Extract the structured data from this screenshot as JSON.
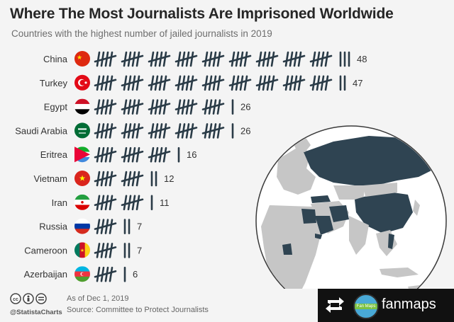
{
  "title": "Where The Most Journalists Are Imprisoned Worldwide",
  "subtitle": "Countries with the highest number of jailed journalists in 2019",
  "chart_data": {
    "type": "bar",
    "encoding": "tally marks (groups of five)",
    "categories": [
      "China",
      "Turkey",
      "Egypt",
      "Saudi Arabia",
      "Eritrea",
      "Vietnam",
      "Iran",
      "Russia",
      "Cameroon",
      "Azerbaijan"
    ],
    "values": [
      48,
      47,
      26,
      26,
      16,
      12,
      11,
      7,
      7,
      6
    ],
    "value_labels": [
      "48",
      "47",
      "26",
      "26",
      "16",
      "12",
      "11",
      "7",
      "7",
      "6"
    ],
    "title": "Where The Most Journalists Are Imprisoned Worldwide",
    "subtitle": "Countries with the highest number of jailed journalists in 2019",
    "xlabel": "",
    "ylabel": ""
  },
  "colors": {
    "tally": "#2a3b47",
    "highlight": "#2f4452",
    "map_land": "#c6c6c6",
    "map_ocean": "#ffffff"
  },
  "footer": {
    "handle": "@StatistaCharts",
    "as_of": "As of Dec 1, 2019",
    "source": "Source: Committee to Protect Journalists"
  },
  "badge": {
    "repost_icon": "repost-icon",
    "logo_text": "Fan Maps",
    "account": "fanmaps"
  }
}
